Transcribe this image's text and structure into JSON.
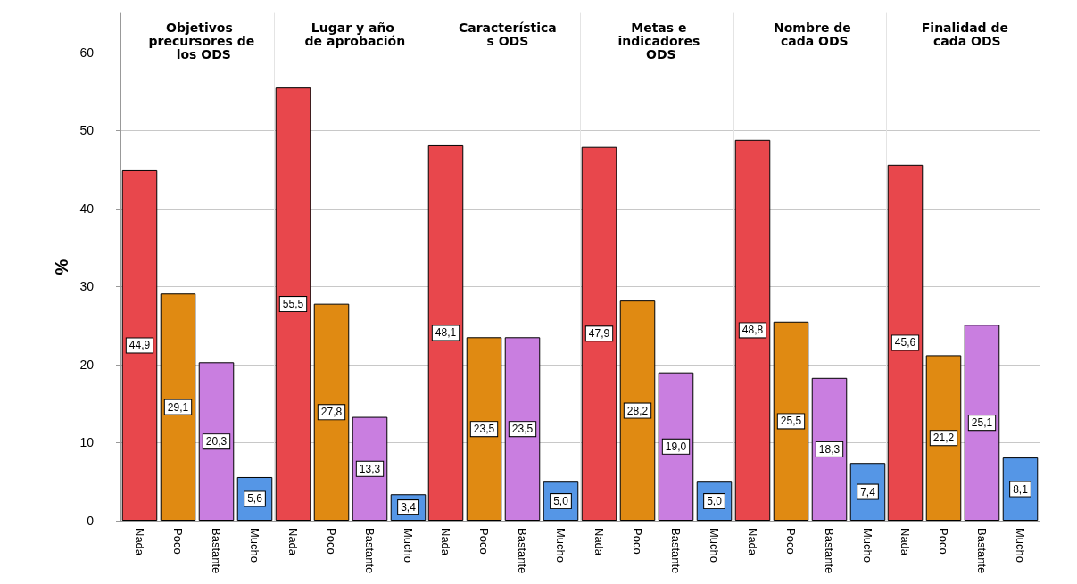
{
  "chart_data": [
    {
      "type": "bar",
      "title": "Objetivos precursores de los ODS",
      "ylabel": "%",
      "categories": [
        "Nada",
        "Poco",
        "Bastante",
        "Mucho"
      ],
      "values": [
        44.9,
        29.1,
        20.3,
        5.6
      ],
      "value_labels": [
        "44,9",
        "29,1",
        "20,3",
        "5,6"
      ],
      "colors": [
        "#e8474c",
        "#e08a12",
        "#c97ee0",
        "#5596e6"
      ],
      "ylim": [
        0,
        65
      ],
      "yticks": [
        0,
        10,
        20,
        30,
        40,
        50,
        60
      ],
      "grid": "y"
    },
    {
      "type": "bar",
      "title": "Lugar y año de aprobación",
      "categories": [
        "Nada",
        "Poco",
        "Bastante",
        "Mucho"
      ],
      "values": [
        55.5,
        27.8,
        13.3,
        3.4
      ],
      "value_labels": [
        "55,5",
        "27,8",
        "13,3",
        "3,4"
      ],
      "colors": [
        "#e8474c",
        "#e08a12",
        "#c97ee0",
        "#5596e6"
      ],
      "ylim": [
        0,
        65
      ],
      "yticks": [
        0,
        10,
        20,
        30,
        40,
        50,
        60
      ],
      "grid": "y",
      "tick_labels": "x"
    },
    {
      "type": "bar",
      "title": "Características ODS",
      "categories": [
        "Nada",
        "Poco",
        "Bastante",
        "Mucho"
      ],
      "values": [
        48.1,
        23.5,
        23.5,
        5.0
      ],
      "value_labels": [
        "48,1",
        "23,5",
        "23,5",
        "5,0"
      ],
      "colors": [
        "#e8474c",
        "#e08a12",
        "#c97ee0",
        "#5596e6"
      ],
      "ylim": [
        0,
        65
      ],
      "yticks": [
        0,
        10,
        20,
        30,
        40,
        50,
        60
      ],
      "grid": "y",
      "tick_labels": "x"
    },
    {
      "type": "bar",
      "title": "Metas e indicadores ODS",
      "categories": [
        "Nada",
        "Poco",
        "Bastante",
        "Mucho"
      ],
      "values": [
        47.9,
        28.2,
        19.0,
        5.0
      ],
      "value_labels": [
        "47,9",
        "28,2",
        "19,0",
        "5,0"
      ],
      "colors": [
        "#e8474c",
        "#e08a12",
        "#c97ee0",
        "#5596e6"
      ],
      "ylim": [
        0,
        65
      ],
      "yticks": [
        0,
        10,
        20,
        30,
        40,
        50,
        60
      ],
      "grid": "y",
      "tick_labels": "x"
    },
    {
      "type": "bar",
      "title": "Nombre de cada ODS",
      "categories": [
        "Nada",
        "Poco",
        "Bastante",
        "Mucho"
      ],
      "values": [
        48.8,
        25.5,
        18.3,
        7.4
      ],
      "value_labels": [
        "48,8",
        "25,5",
        "18,3",
        "7,4"
      ],
      "colors": [
        "#e8474c",
        "#e08a12",
        "#c97ee0",
        "#5596e6"
      ],
      "ylim": [
        0,
        65
      ],
      "yticks": [
        0,
        10,
        20,
        30,
        40,
        50,
        60
      ],
      "grid": "y",
      "tick_labels": "x"
    },
    {
      "type": "bar",
      "title": "Finalidad de cada ODS",
      "categories": [
        "Nada",
        "Poco",
        "Bastante",
        "Mucho"
      ],
      "values": [
        45.6,
        21.2,
        25.1,
        8.1
      ],
      "value_labels": [
        "45,6",
        "21,2",
        "25,1",
        "8,1"
      ],
      "colors": [
        "#e8474c",
        "#e08a12",
        "#c97ee0",
        "#5596e6"
      ],
      "ylim": [
        0,
        65
      ],
      "yticks": [
        0,
        10,
        20,
        30,
        40,
        50,
        60
      ],
      "grid": "y",
      "tick_labels": "x"
    }
  ]
}
